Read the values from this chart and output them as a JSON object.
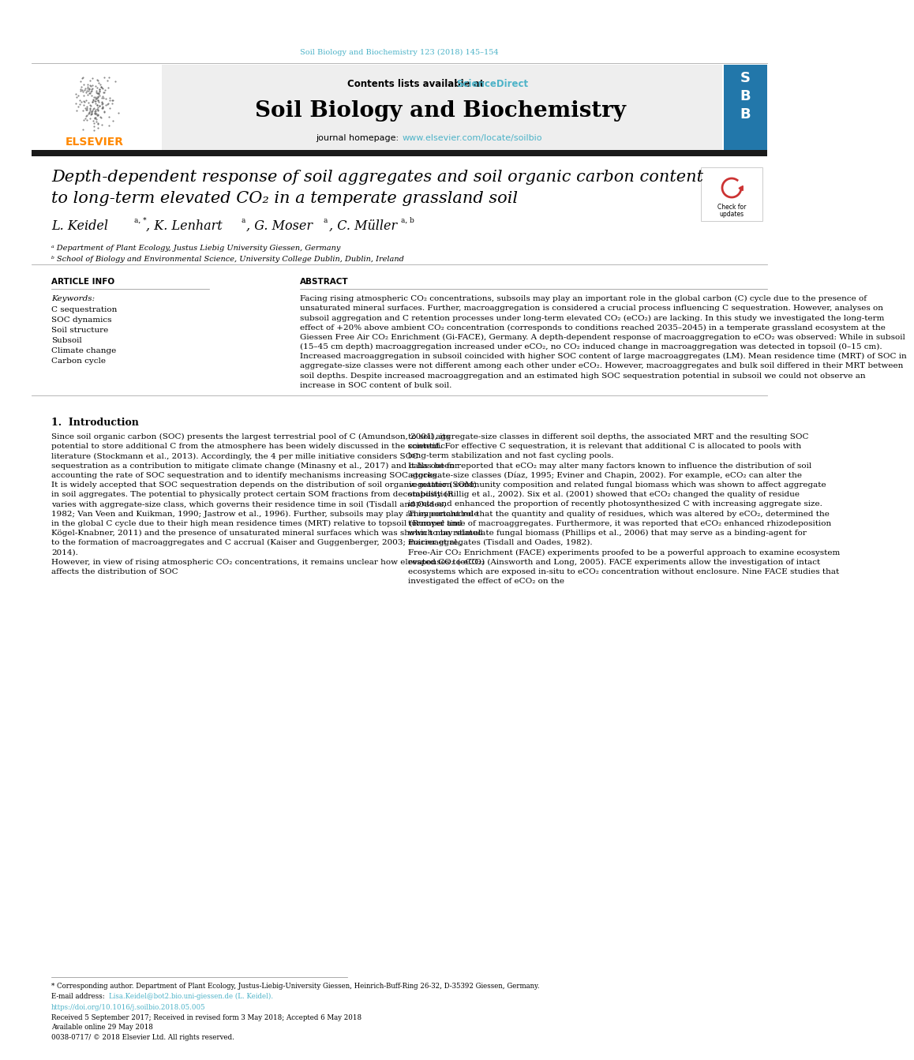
{
  "journal_ref": "Soil Biology and Biochemistry 123 (2018) 145–154",
  "journal_name": "Soil Biology and Biochemistry",
  "contents_text": "Contents lists available at",
  "sciencedirect": "ScienceDirect",
  "journal_homepage_label": "journal homepage:",
  "journal_homepage_url": "www.elsevier.com/locate/soilbio",
  "title_line1": "Depth-dependent response of soil aggregates and soil organic carbon content",
  "title_line2": "to long-term elevated CO₂ in a temperate grassland soil",
  "affil_a": "ᵃ Department of Plant Ecology, Justus Liebig University Giessen, Germany",
  "affil_b": "ᵇ School of Biology and Environmental Science, University College Dublin, Dublin, Ireland",
  "article_info_label": "ARTICLE INFO",
  "keywords_label": "Keywords:",
  "keywords": [
    "C sequestration",
    "SOC dynamics",
    "Soil structure",
    "Subsoil",
    "Climate change",
    "Carbon cycle"
  ],
  "abstract_label": "ABSTRACT",
  "abstract_text": "Facing rising atmospheric CO₂ concentrations, subsoils may play an important role in the global carbon (C) cycle due to the presence of unsaturated mineral surfaces. Further, macroaggregation is considered a crucial process influencing C sequestration. However, analyses on subsoil aggregation and C retention processes under long-term elevated CO₂ (eCO₂) are lacking. In this study we investigated the long-term effect of +20% above ambient CO₂ concentration (corresponds to conditions reached 2035–2045) in a temperate grassland ecosystem at the Giessen Free Air CO₂ Enrichment (Gi-FACE), Germany. A depth-dependent response of macroaggregation to eCO₂ was observed: While in subsoil (15–45 cm depth) macroaggregation increased under eCO₂, no CO₂ induced change in macroaggregation was detected in topsoil (0–15 cm). Increased macroaggregation in subsoil coincided with higher SOC content of large macroaggregates (LM). Mean residence time (MRT) of SOC in aggregate-size classes were not different among each other under eCO₂. However, macroaggregates and bulk soil differed in their MRT between soil depths. Despite increased macroaggregation and an estimated high SOC sequestration potential in subsoil we could not observe an increase in SOC content of bulk soil.",
  "intro_heading": "1.  Introduction",
  "intro_col1": "    Since soil organic carbon (SOC) presents the largest terrestrial pool of C (Amundson, 2001), its potential to store additional C from the atmosphere has been widely discussed in the scientific literature (Stockmann et al., 2013). Accordingly, the 4 per mille initiative considers SOC sequestration as a contribution to mitigate climate change (Minasny et al., 2017) and calls out for accounting the rate of SOC sequestration and to identify mechanisms increasing SOC stocks.\n    It is widely accepted that SOC sequestration depends on the distribution of soil organic matter (SOM) in soil aggregates. The potential to physically protect certain SOM fractions from decomposition varies with aggregate-size class, which governs their residence time in soil (Tisdall and Oades, 1982; Van Veen and Kuikman, 1990; Jastrow et al., 1996). Further, subsoils may play an important role in the global C cycle due to their high mean residence times (MRT) relative to topsoil (Rumpel and Kögel-Knabner, 2011) and the presence of unsaturated mineral surfaces which was shown to be related to the formation of macroaggregates and C accrual (Kaiser and Guggenberger, 2003; Poirier et al., 2014).\n    However, in view of rising atmospheric CO₂ concentrations, it remains unclear how elevated CO₂ (eCO₂) affects the distribution of SOC",
  "intro_col2": "to soil aggregate-size classes in different soil depths, the associated MRT and the resulting SOC content. For effective C sequestration, it is relevant that additional C is allocated to pools with long-term stabilization and not fast cycling pools.\n    It has been reported that eCO₂ may alter many factors known to influence the distribution of soil aggregate-size classes (Díaz, 1995; Eviner and Chapin, 2002). For example, eCO₂ can alter the vegetation community composition and related fungal biomass which was shown to affect aggregate stability (Rillig et al., 2002). Six et al. (2001) showed that eCO₂ changed the quality of residue inputs and enhanced the proportion of recently photosynthesized C with increasing aggregate size. They concluded that the quantity and quality of residues, which was altered by eCO₂, determined the turnover time of macroaggregates. Furthermore, it was reported that eCO₂ enhanced rhizodeposition which may stimulate fungal biomass (Phillips et al., 2006) that may serve as a binding-agent for macroaggregates (Tisdall and Oades, 1982).\n    Free-Air CO₂ Enrichment (FACE) experiments proofed to be a powerful approach to examine ecosystem responses to eCO₂ (Ainsworth and Long, 2005). FACE experiments allow the investigation of intact ecosystems which are exposed in-situ to eCO₂ concentration without enclosure. Nine FACE studies that investigated the effect of eCO₂ on the",
  "footer_note": "* Corresponding author. Department of Plant Ecology, Justus-Liebig-University Giessen, Heinrich-Buff-Ring 26-32, D-35392 Giessen, Germany.",
  "email_label": "E-mail address:",
  "email": "Lisa.Keidel@bot2.bio.uni-giessen.de (L. Keidel).",
  "doi": "https://doi.org/10.1016/j.soilbio.2018.05.005",
  "received_text": "Received 5 September 2017; Received in revised form 3 May 2018; Accepted 6 May 2018",
  "available_text": "Available online 29 May 2018",
  "copyright": "0038-0717/ © 2018 Elsevier Ltd. All rights reserved.",
  "header_color": "#4db3c8",
  "link_color": "#4db3c8",
  "black_bar": "#1a1a1a",
  "title_fontsize": 15,
  "body_fontsize": 7.5,
  "small_fontsize": 6.5
}
